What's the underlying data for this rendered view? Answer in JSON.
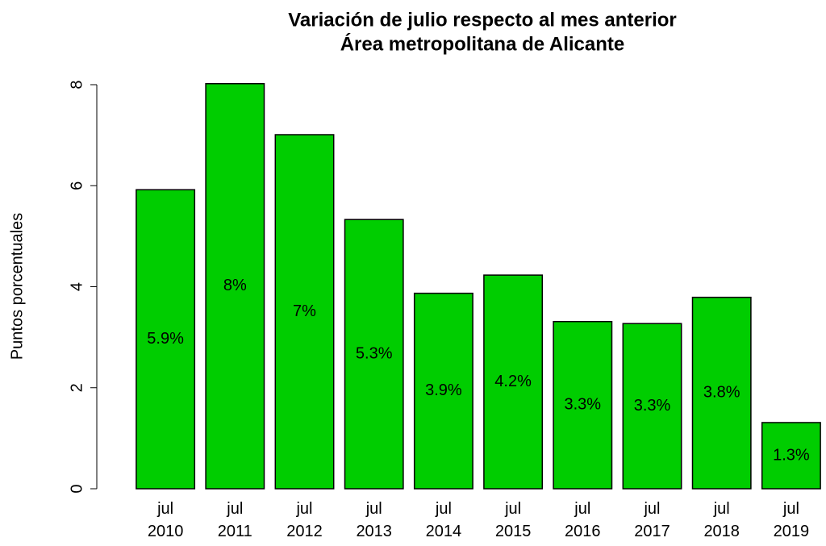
{
  "chart_data": {
    "type": "bar",
    "title": "Variación de julio respecto al mes anterior",
    "subtitle": "Área metropolitana de Alicante",
    "y_label": "Puntos porcentuales",
    "categories": [
      "jul\n2010",
      "jul\n2011",
      "jul\n2012",
      "jul\n2013",
      "jul\n2014",
      "jul\n2015",
      "jul\n2016",
      "jul\n2017",
      "jul\n2018",
      "jul\n2019"
    ],
    "values": [
      5.92,
      8.02,
      7.01,
      5.33,
      3.87,
      4.23,
      3.31,
      3.27,
      3.79,
      1.31
    ],
    "value_labels": [
      "5.9%",
      "8%",
      "7%",
      "5.3%",
      "3.9%",
      "4.2%",
      "3.3%",
      "3.3%",
      "3.8%",
      "1.3%"
    ],
    "color": "#00cd00",
    "ylim": [
      0,
      8
    ],
    "yticks": [
      0,
      2,
      4,
      6,
      8
    ]
  }
}
